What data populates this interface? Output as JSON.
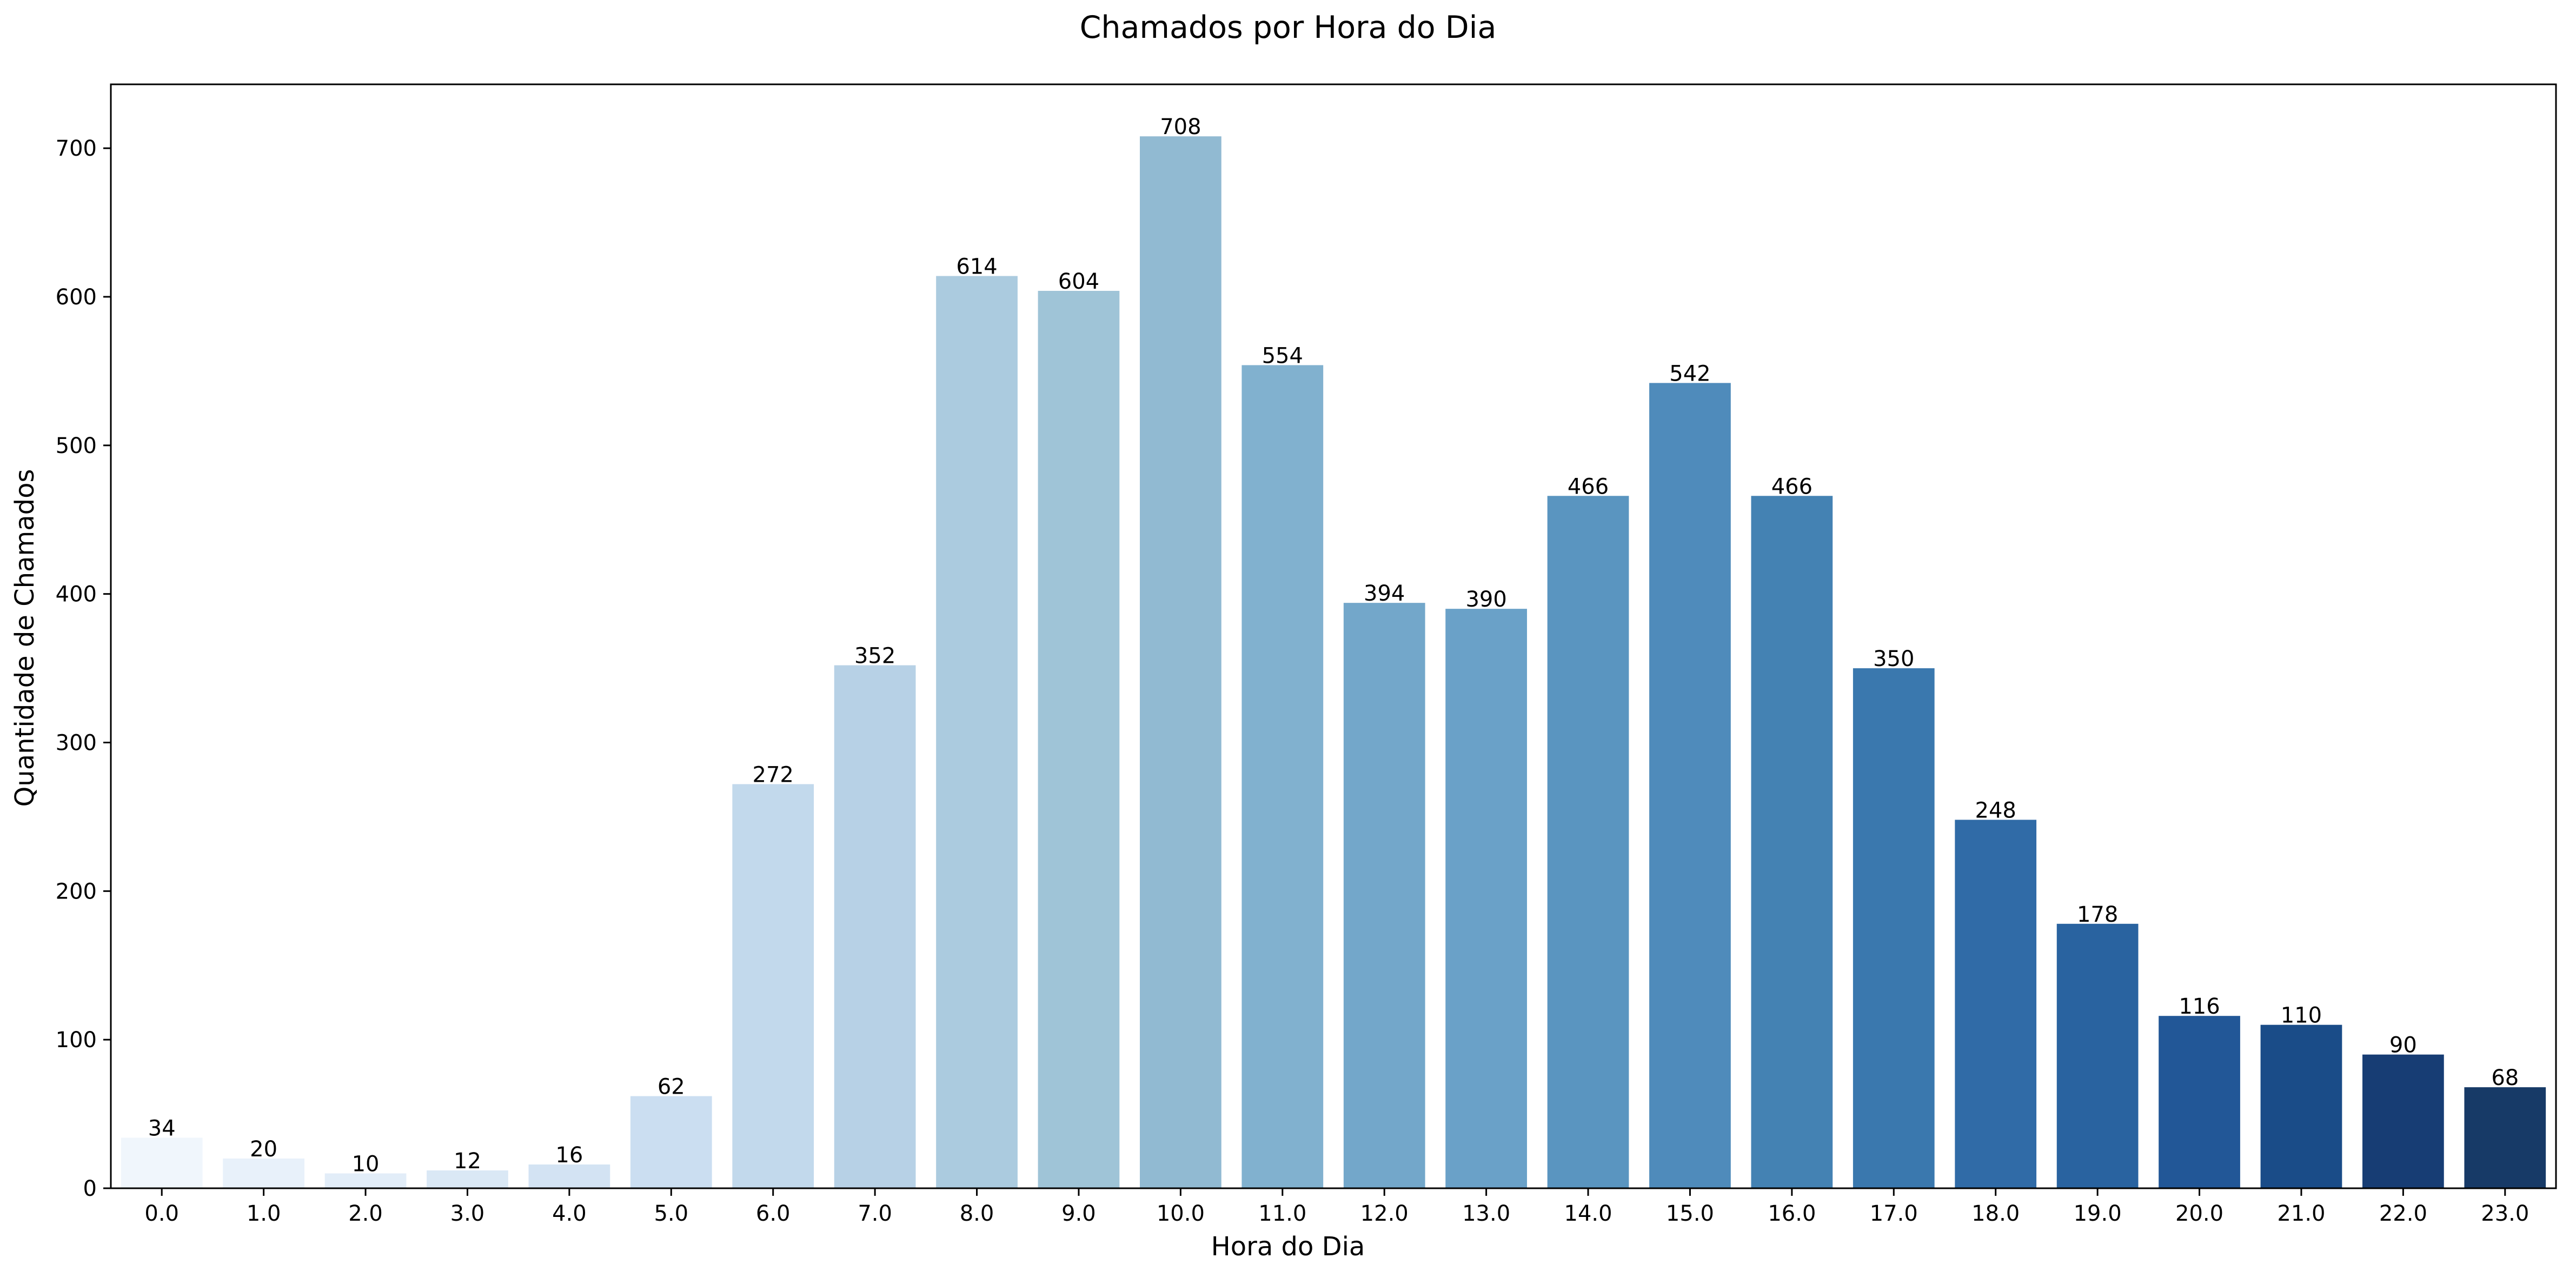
{
  "chart_data": {
    "type": "bar",
    "title": "Chamados por Hora do Dia",
    "xlabel": "Hora do Dia",
    "ylabel": "Quantidade de Chamados",
    "categories": [
      "0.0",
      "1.0",
      "2.0",
      "3.0",
      "4.0",
      "5.0",
      "6.0",
      "7.0",
      "8.0",
      "9.0",
      "10.0",
      "11.0",
      "12.0",
      "13.0",
      "14.0",
      "15.0",
      "16.0",
      "17.0",
      "18.0",
      "19.0",
      "20.0",
      "21.0",
      "22.0",
      "23.0"
    ],
    "values": [
      34,
      20,
      10,
      12,
      16,
      62,
      272,
      352,
      614,
      604,
      708,
      554,
      394,
      390,
      466,
      542,
      466,
      350,
      248,
      178,
      116,
      110,
      90,
      68
    ],
    "data_labels": [
      "34",
      "20",
      "10",
      "12",
      "16",
      "62",
      "272",
      "352",
      "614",
      "604",
      "708",
      "554",
      "394",
      "390",
      "466",
      "542",
      "466",
      "350",
      "248",
      "178",
      "116",
      "110",
      "90",
      "68"
    ],
    "yticks": [
      0,
      100,
      200,
      300,
      400,
      500,
      600,
      700
    ],
    "ytick_labels": [
      "0",
      "100",
      "200",
      "300",
      "400",
      "500",
      "600",
      "700"
    ],
    "ylim": [
      0,
      743
    ],
    "grid": false,
    "legend": "none",
    "colors": [
      "#f0f6fc",
      "#e8f1fa",
      "#e2edf8",
      "#dae8f5",
      "#d3e3f3",
      "#cbdef1",
      "#c2d9ec",
      "#b7d1e6",
      "#abcbdf",
      "#9fc4d7",
      "#91bad2",
      "#81b1cf",
      "#73a7ca",
      "#6aa1c8",
      "#5a95c0",
      "#4f8bbb",
      "#4482b3",
      "#3a78ae",
      "#306ba7",
      "#2963a0",
      "#225797",
      "#1a4c88",
      "#173d74",
      "#173a67"
    ]
  }
}
